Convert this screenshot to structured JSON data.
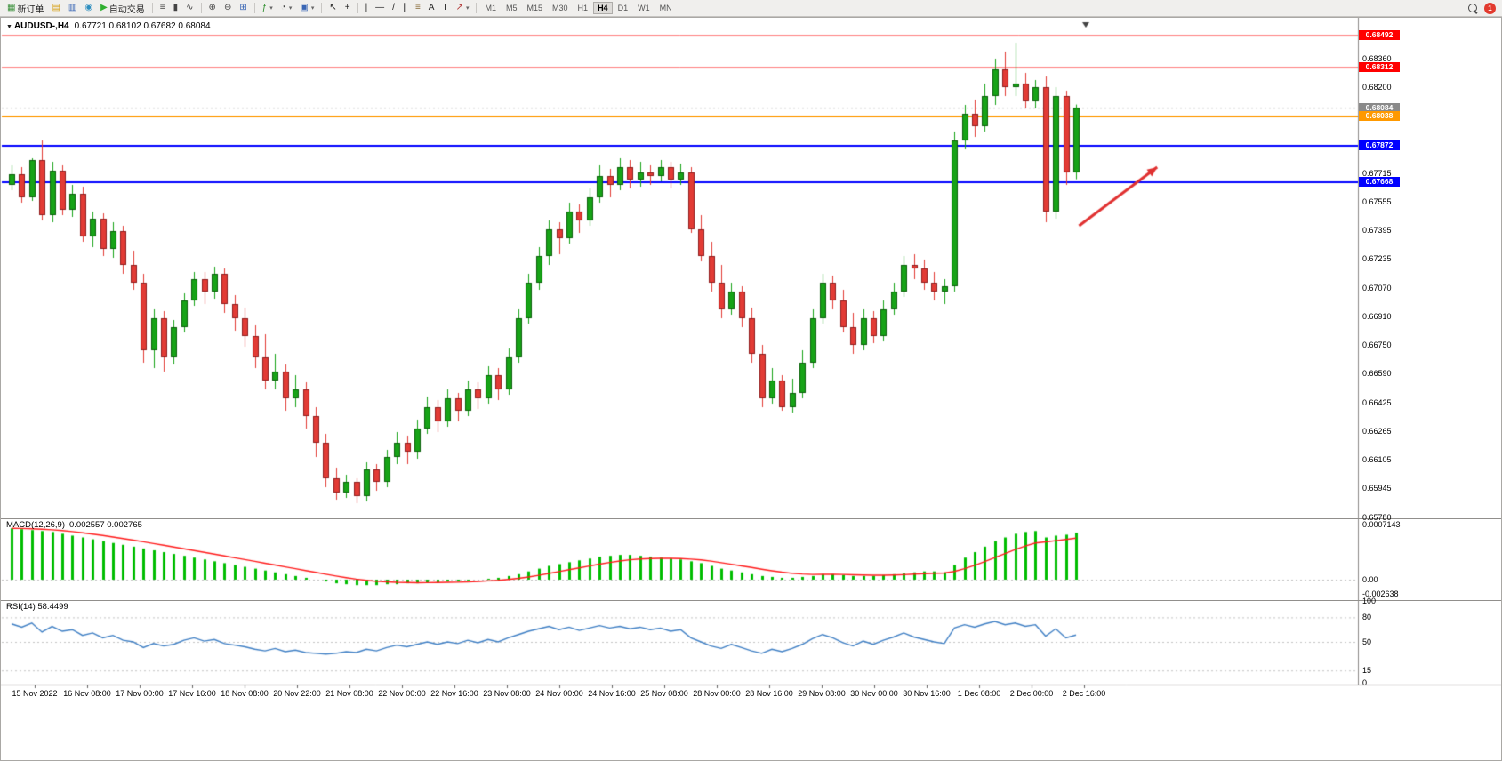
{
  "toolbar": {
    "new_order": "新订单",
    "autotrading": "自动交易",
    "timeframes": [
      "M1",
      "M5",
      "M15",
      "M30",
      "H1",
      "H4",
      "D1",
      "W1",
      "MN"
    ],
    "active_timeframe": "H4",
    "notification_count": "1",
    "items": [
      {
        "name": "new-order-button",
        "glyph": "▦",
        "color": "#3a8f3a",
        "label": "新订单"
      },
      {
        "name": "chart-profile-button",
        "glyph": "▤",
        "color": "#d7a421"
      },
      {
        "name": "market-watch-button",
        "glyph": "▥",
        "color": "#3a66b5"
      },
      {
        "name": "navigator-button",
        "glyph": "◉",
        "color": "#2f8fbf"
      },
      {
        "name": "autotrading-button",
        "glyph": "▶",
        "color": "#2faf2f",
        "label": "自动交易"
      },
      {
        "sep": true
      },
      {
        "name": "bar-chart-button",
        "glyph": "≡",
        "color": "#444"
      },
      {
        "name": "candlestick-chart-button",
        "glyph": "▮",
        "color": "#444"
      },
      {
        "name": "line-chart-button",
        "glyph": "∿",
        "color": "#444"
      },
      {
        "sep": true
      },
      {
        "name": "zoom-in-button",
        "glyph": "⊕",
        "color": "#444"
      },
      {
        "name": "zoom-out-button",
        "glyph": "⊖",
        "color": "#444"
      },
      {
        "name": "tile-windows-button",
        "glyph": "⊞",
        "color": "#3a66b5"
      },
      {
        "sep": true
      },
      {
        "name": "indicators-button",
        "glyph": "ƒ",
        "color": "#2f8f2f",
        "dropdown": true
      },
      {
        "name": "periods-button",
        "glyph": "◔",
        "color": "#444",
        "dropdown": true
      },
      {
        "name": "templates-button",
        "glyph": "▣",
        "color": "#3a66b5",
        "dropdown": true
      },
      {
        "sep": true
      },
      {
        "name": "cursor-button",
        "glyph": "↖",
        "color": "#222"
      },
      {
        "name": "crosshair-button",
        "glyph": "+",
        "color": "#222"
      },
      {
        "sep": true
      },
      {
        "name": "vertical-line-button",
        "glyph": "|",
        "color": "#222"
      },
      {
        "name": "horizontal-line-button",
        "glyph": "—",
        "color": "#222"
      },
      {
        "name": "trendline-button",
        "glyph": "/",
        "color": "#222"
      },
      {
        "name": "channel-button",
        "glyph": "∥",
        "color": "#222"
      },
      {
        "name": "fibonacci-button",
        "glyph": "≡",
        "color": "#8a6d3b"
      },
      {
        "name": "text-button",
        "glyph": "A",
        "color": "#222"
      },
      {
        "name": "label-button",
        "glyph": "T",
        "color": "#222"
      },
      {
        "name": "arrows-button",
        "glyph": "↗",
        "color": "#b03030",
        "dropdown": true
      },
      {
        "sep": true
      }
    ]
  },
  "chart": {
    "symbol_label": "AUDUSD-,H4",
    "ohlc": "0.67721 0.68102 0.67682 0.68084"
  },
  "chart_data": {
    "type": "candlestick",
    "symbol": "AUDUSD",
    "timeframe": "H4",
    "current": {
      "open": 0.67721,
      "high": 0.68102,
      "low": 0.67682,
      "close": 0.68084
    },
    "colors": {
      "bull": "#17a317",
      "bear": "#e23b35",
      "bull_edge": "#0a5f0a",
      "bear_edge": "#8f1d1d",
      "macd_hist": "#00bd00",
      "macd_signal": "#ff1a1a",
      "rsi_line": "#3f7fc4",
      "hline_red": "#ff0000",
      "hline_orange": "#ff9900",
      "hline_blue": "#0000ff",
      "arrow": "#e03131"
    },
    "price_axis": [
      "0.68360",
      "0.68200",
      "0.68040",
      "0.67880",
      "0.67715",
      "0.67555",
      "0.67395",
      "0.67235",
      "0.67070",
      "0.66910",
      "0.66750",
      "0.66590",
      "0.66425",
      "0.66265",
      "0.66105",
      "0.65945",
      "0.65780"
    ],
    "time_axis": [
      "15 Nov 2022",
      "16 Nov 08:00",
      "17 Nov 00:00",
      "17 Nov 16:00",
      "18 Nov 08:00",
      "20 Nov 22:00",
      "21 Nov 08:00",
      "22 Nov 00:00",
      "22 Nov 16:00",
      "23 Nov 08:00",
      "24 Nov 00:00",
      "24 Nov 16:00",
      "25 Nov 08:00",
      "28 Nov 00:00",
      "28 Nov 16:00",
      "29 Nov 08:00",
      "30 Nov 00:00",
      "30 Nov 16:00",
      "1 Dec 08:00",
      "2 Dec 00:00",
      "2 Dec 16:00"
    ],
    "hlines": [
      {
        "price": 0.68492,
        "label": "0.68492",
        "color": "#ff0000",
        "width": 1
      },
      {
        "price": 0.68312,
        "label": "0.68312",
        "color": "#ff0000",
        "width": 1
      },
      {
        "price": 0.68038,
        "label": "0.68038",
        "color": "#ff9900",
        "width": 2
      },
      {
        "price": 0.67872,
        "label": "0.67872",
        "color": "#0000ff",
        "width": 2
      },
      {
        "price": 0.67668,
        "label": "0.67668",
        "color": "#0000ff",
        "width": 2
      }
    ],
    "current_price_tag": {
      "label": "0.68084",
      "price": 0.68084,
      "color": "#8a8a8a"
    },
    "annotation_arrow": {
      "from_candle": 105.3,
      "from_price": 0.6742,
      "to_candle": 113,
      "to_price": 0.6775,
      "color": "#e03131"
    },
    "candles": [
      [
        0.6765,
        0.6776,
        0.6762,
        0.6771
      ],
      [
        0.6771,
        0.6775,
        0.6755,
        0.6758
      ],
      [
        0.6758,
        0.678,
        0.6756,
        0.6779
      ],
      [
        0.6779,
        0.679,
        0.6745,
        0.6748
      ],
      [
        0.6748,
        0.6778,
        0.6744,
        0.6773
      ],
      [
        0.6773,
        0.6776,
        0.6748,
        0.6751
      ],
      [
        0.6751,
        0.6765,
        0.6747,
        0.676
      ],
      [
        0.676,
        0.6764,
        0.6733,
        0.6736
      ],
      [
        0.6736,
        0.675,
        0.673,
        0.6746
      ],
      [
        0.6746,
        0.6749,
        0.6725,
        0.6729
      ],
      [
        0.6729,
        0.6744,
        0.6724,
        0.6739
      ],
      [
        0.6739,
        0.6742,
        0.6715,
        0.672
      ],
      [
        0.672,
        0.6728,
        0.6706,
        0.671
      ],
      [
        0.671,
        0.6715,
        0.6665,
        0.6672
      ],
      [
        0.6672,
        0.6695,
        0.6662,
        0.669
      ],
      [
        0.669,
        0.6694,
        0.666,
        0.6668
      ],
      [
        0.6668,
        0.6689,
        0.6664,
        0.6685
      ],
      [
        0.6685,
        0.6704,
        0.6682,
        0.67
      ],
      [
        0.67,
        0.6716,
        0.6697,
        0.6712
      ],
      [
        0.6712,
        0.6716,
        0.6698,
        0.6705
      ],
      [
        0.6705,
        0.6719,
        0.6701,
        0.6715
      ],
      [
        0.6715,
        0.6718,
        0.6693,
        0.6698
      ],
      [
        0.6698,
        0.6703,
        0.6683,
        0.669
      ],
      [
        0.669,
        0.6696,
        0.6674,
        0.668
      ],
      [
        0.668,
        0.6686,
        0.6662,
        0.6668
      ],
      [
        0.6668,
        0.6681,
        0.665,
        0.6655
      ],
      [
        0.6655,
        0.667,
        0.665,
        0.666
      ],
      [
        0.666,
        0.6664,
        0.6638,
        0.6645
      ],
      [
        0.6645,
        0.6658,
        0.664,
        0.665
      ],
      [
        0.665,
        0.6654,
        0.6628,
        0.6635
      ],
      [
        0.6635,
        0.664,
        0.6612,
        0.662
      ],
      [
        0.662,
        0.6625,
        0.6595,
        0.66
      ],
      [
        0.66,
        0.6606,
        0.6588,
        0.6592
      ],
      [
        0.6592,
        0.6602,
        0.6589,
        0.6598
      ],
      [
        0.6598,
        0.66,
        0.6586,
        0.659
      ],
      [
        0.659,
        0.6609,
        0.6587,
        0.6605
      ],
      [
        0.6605,
        0.6608,
        0.6593,
        0.6598
      ],
      [
        0.6598,
        0.6616,
        0.6595,
        0.6612
      ],
      [
        0.6612,
        0.6626,
        0.6608,
        0.662
      ],
      [
        0.662,
        0.6624,
        0.6608,
        0.6615
      ],
      [
        0.6615,
        0.6633,
        0.6611,
        0.6628
      ],
      [
        0.6628,
        0.6646,
        0.6625,
        0.664
      ],
      [
        0.664,
        0.6644,
        0.6626,
        0.6632
      ],
      [
        0.6632,
        0.665,
        0.6629,
        0.6645
      ],
      [
        0.6645,
        0.6648,
        0.6632,
        0.6638
      ],
      [
        0.6638,
        0.6655,
        0.6635,
        0.665
      ],
      [
        0.665,
        0.6654,
        0.6639,
        0.6645
      ],
      [
        0.6645,
        0.6663,
        0.6642,
        0.6658
      ],
      [
        0.6658,
        0.6662,
        0.6644,
        0.665
      ],
      [
        0.665,
        0.6673,
        0.6647,
        0.6668
      ],
      [
        0.6668,
        0.6695,
        0.6665,
        0.669
      ],
      [
        0.669,
        0.6715,
        0.6687,
        0.671
      ],
      [
        0.671,
        0.673,
        0.6706,
        0.6725
      ],
      [
        0.6725,
        0.6745,
        0.672,
        0.674
      ],
      [
        0.674,
        0.6744,
        0.6726,
        0.6735
      ],
      [
        0.6735,
        0.6755,
        0.6732,
        0.675
      ],
      [
        0.675,
        0.6754,
        0.6738,
        0.6745
      ],
      [
        0.6745,
        0.6763,
        0.6742,
        0.6758
      ],
      [
        0.6758,
        0.6776,
        0.6755,
        0.677
      ],
      [
        0.677,
        0.6774,
        0.6758,
        0.6765
      ],
      [
        0.6765,
        0.678,
        0.6762,
        0.6775
      ],
      [
        0.6775,
        0.6779,
        0.6763,
        0.6768
      ],
      [
        0.6768,
        0.6778,
        0.6764,
        0.6772
      ],
      [
        0.6772,
        0.6776,
        0.6765,
        0.677
      ],
      [
        0.677,
        0.6779,
        0.6767,
        0.6775
      ],
      [
        0.6775,
        0.6778,
        0.6763,
        0.6768
      ],
      [
        0.6768,
        0.6777,
        0.6765,
        0.6772
      ],
      [
        0.6772,
        0.6775,
        0.6738,
        0.674
      ],
      [
        0.674,
        0.6748,
        0.6722,
        0.6725
      ],
      [
        0.6725,
        0.6733,
        0.6705,
        0.671
      ],
      [
        0.671,
        0.672,
        0.669,
        0.6695
      ],
      [
        0.6695,
        0.671,
        0.6692,
        0.6705
      ],
      [
        0.6705,
        0.6708,
        0.6685,
        0.669
      ],
      [
        0.669,
        0.6696,
        0.6665,
        0.667
      ],
      [
        0.667,
        0.6675,
        0.664,
        0.6645
      ],
      [
        0.6645,
        0.6662,
        0.6642,
        0.6655
      ],
      [
        0.6655,
        0.6658,
        0.6638,
        0.664
      ],
      [
        0.664,
        0.6656,
        0.6637,
        0.6648
      ],
      [
        0.6648,
        0.6672,
        0.6645,
        0.6665
      ],
      [
        0.6665,
        0.6695,
        0.6662,
        0.669
      ],
      [
        0.669,
        0.6715,
        0.6687,
        0.671
      ],
      [
        0.671,
        0.6714,
        0.6695,
        0.67
      ],
      [
        0.67,
        0.6706,
        0.6682,
        0.6685
      ],
      [
        0.6685,
        0.6693,
        0.667,
        0.6675
      ],
      [
        0.6675,
        0.6695,
        0.6672,
        0.669
      ],
      [
        0.669,
        0.6694,
        0.6676,
        0.668
      ],
      [
        0.668,
        0.67,
        0.6677,
        0.6695
      ],
      [
        0.6695,
        0.671,
        0.6692,
        0.6705
      ],
      [
        0.6705,
        0.6725,
        0.6702,
        0.672
      ],
      [
        0.672,
        0.6726,
        0.6712,
        0.6718
      ],
      [
        0.6718,
        0.6723,
        0.6706,
        0.671
      ],
      [
        0.671,
        0.6716,
        0.67,
        0.6705
      ],
      [
        0.6705,
        0.6712,
        0.6698,
        0.6708
      ],
      [
        0.6708,
        0.6795,
        0.6705,
        0.679
      ],
      [
        0.679,
        0.681,
        0.6785,
        0.6805
      ],
      [
        0.6805,
        0.6813,
        0.6792,
        0.6798
      ],
      [
        0.6798,
        0.6822,
        0.6795,
        0.6815
      ],
      [
        0.6815,
        0.6836,
        0.681,
        0.683
      ],
      [
        0.683,
        0.684,
        0.6815,
        0.682
      ],
      [
        0.682,
        0.6845,
        0.6815,
        0.6822
      ],
      [
        0.6822,
        0.6828,
        0.6808,
        0.6812
      ],
      [
        0.6812,
        0.6824,
        0.6808,
        0.682
      ],
      [
        0.682,
        0.6826,
        0.6744,
        0.675
      ],
      [
        0.675,
        0.682,
        0.6746,
        0.6815
      ],
      [
        0.6815,
        0.6818,
        0.6765,
        0.67721
      ],
      [
        0.67721,
        0.68102,
        0.67682,
        0.68084
      ]
    ],
    "macd": {
      "label": "MACD(12,26,9)",
      "value": 0.002557,
      "signal_value": 0.002765,
      "values_label": "0.002557 0.002765",
      "axis_labels": [
        "0.0007143",
        "0.00",
        "-0.002638"
      ],
      "histogram_x1e4": [
        28,
        27.5,
        27,
        26.5,
        26,
        25,
        24,
        23,
        22,
        21,
        20,
        19,
        18,
        17,
        16,
        15,
        14,
        13,
        12,
        11,
        10,
        9,
        8,
        7,
        6,
        5,
        4,
        3,
        2,
        1,
        0,
        -1,
        -2,
        -2.5,
        -3,
        -3,
        -3,
        -2.5,
        -2.5,
        -2,
        -2,
        -1.5,
        -1.5,
        -1,
        -1,
        -0.5,
        0,
        0.5,
        1,
        2,
        3,
        4.5,
        6,
        7.5,
        8.5,
        9.5,
        10.5,
        11.5,
        12.5,
        13,
        13.5,
        13.5,
        13,
        12.5,
        12,
        11.5,
        11,
        10,
        9,
        7.5,
        6,
        5,
        4,
        3,
        2,
        1.5,
        1,
        1,
        1.5,
        2,
        3,
        3,
        2.5,
        2,
        2,
        2,
        2.5,
        3,
        3.5,
        4,
        4.5,
        4.5,
        4,
        8,
        12,
        15,
        18,
        21,
        23,
        25,
        26,
        26.5,
        23,
        24,
        24.5,
        25.57
      ]
    },
    "rsi": {
      "label": "RSI(14) 58.4499",
      "period": 14,
      "value": 58.4499,
      "levels": [
        80,
        50,
        15
      ],
      "axis_labels": [
        "100",
        "80",
        "50",
        "15",
        "0"
      ],
      "axis_values": [
        100,
        80,
        50,
        15,
        0
      ],
      "values": [
        72,
        68,
        73,
        62,
        69,
        63,
        65,
        58,
        61,
        55,
        58,
        52,
        50,
        43,
        48,
        45,
        47,
        52,
        55,
        51,
        53,
        48,
        46,
        44,
        41,
        39,
        42,
        38,
        40,
        37,
        36,
        35,
        36,
        38,
        37,
        41,
        39,
        43,
        46,
        44,
        47,
        50,
        47,
        50,
        48,
        52,
        49,
        53,
        50,
        55,
        59,
        63,
        66,
        69,
        65,
        68,
        64,
        67,
        70,
        67,
        69,
        66,
        68,
        65,
        67,
        63,
        65,
        55,
        50,
        45,
        42,
        47,
        43,
        39,
        36,
        41,
        38,
        42,
        47,
        54,
        59,
        55,
        49,
        45,
        51,
        47,
        52,
        56,
        61,
        56,
        53,
        50,
        48,
        67,
        71,
        68,
        72,
        75,
        71,
        73,
        69,
        71,
        57,
        66,
        55,
        58.45
      ]
    }
  }
}
